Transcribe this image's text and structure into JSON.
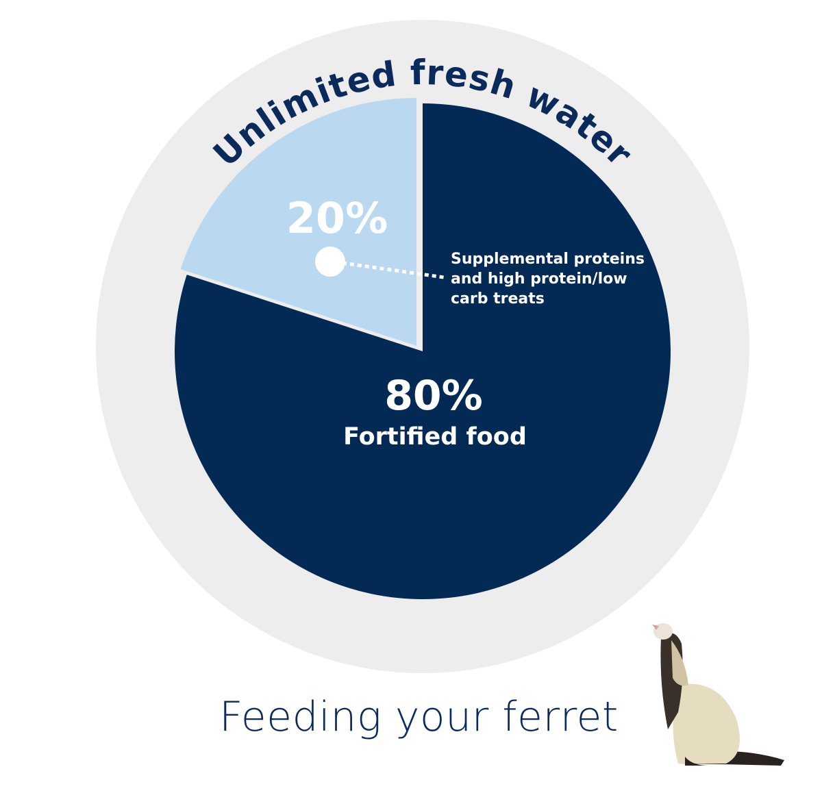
{
  "chart_data": {
    "type": "pie",
    "title": "Feeding your ferret",
    "ring_label": "Unlimited fresh water",
    "slices": [
      {
        "name": "Fortified food",
        "label": "80%",
        "value": 80,
        "color": "#032a55"
      },
      {
        "name": "Supplemental proteins and high protein/low carb treats",
        "label": "20%",
        "value": 20,
        "color": "#bad9f0"
      }
    ],
    "ring_color": "#ededed",
    "text_color": "#0a2a5c",
    "image": "ferret-standing-photo"
  }
}
